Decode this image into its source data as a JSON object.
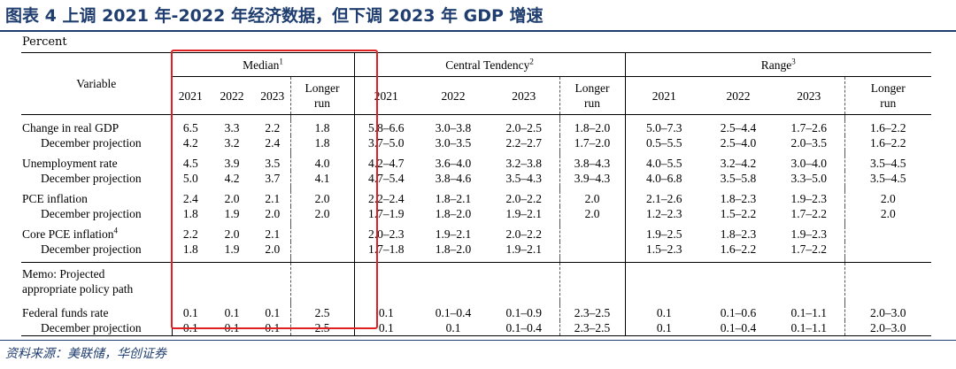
{
  "title": "图表 4   上调 2021 年-2022 年经济数据，但下调 2023 年 GDP 增速",
  "unit_label": "Percent",
  "header": {
    "variable": "Variable",
    "groups": [
      {
        "label": "Median",
        "sup": "1"
      },
      {
        "label": "Central Tendency",
        "sup": "2"
      },
      {
        "label": "Range",
        "sup": "3"
      }
    ],
    "years": [
      "2021",
      "2022",
      "2023"
    ],
    "longer_run_line1": "Longer",
    "longer_run_line2": "run"
  },
  "rows": [
    {
      "label": "Change in real GDP",
      "sup": "",
      "values": [
        "6.5",
        "3.3",
        "2.2",
        "1.8",
        "5.8–6.6",
        "3.0–3.8",
        "2.0–2.5",
        "1.8–2.0",
        "5.0–7.3",
        "2.5–4.4",
        "1.7–2.6",
        "1.6–2.2"
      ]
    },
    {
      "label": "December projection",
      "sup": "",
      "sub": true,
      "values": [
        "4.2",
        "3.2",
        "2.4",
        "1.8",
        "3.7–5.0",
        "3.0–3.5",
        "2.2–2.7",
        "1.7–2.0",
        "0.5–5.5",
        "2.5–4.0",
        "2.0–3.5",
        "1.6–2.2"
      ]
    },
    {
      "label": "Unemployment rate",
      "sup": "",
      "values": [
        "4.5",
        "3.9",
        "3.5",
        "4.0",
        "4.2–4.7",
        "3.6–4.0",
        "3.2–3.8",
        "3.8–4.3",
        "4.0–5.5",
        "3.2–4.2",
        "3.0–4.0",
        "3.5–4.5"
      ]
    },
    {
      "label": "December projection",
      "sup": "",
      "sub": true,
      "values": [
        "5.0",
        "4.2",
        "3.7",
        "4.1",
        "4.7–5.4",
        "3.8–4.6",
        "3.5–4.3",
        "3.9–4.3",
        "4.0–6.8",
        "3.5–5.8",
        "3.3–5.0",
        "3.5–4.5"
      ]
    },
    {
      "label": "PCE inflation",
      "sup": "",
      "values": [
        "2.4",
        "2.0",
        "2.1",
        "2.0",
        "2.2–2.4",
        "1.8–2.1",
        "2.0–2.2",
        "2.0",
        "2.1–2.6",
        "1.8–2.3",
        "1.9–2.3",
        "2.0"
      ]
    },
    {
      "label": "December projection",
      "sup": "",
      "sub": true,
      "values": [
        "1.8",
        "1.9",
        "2.0",
        "2.0",
        "1.7–1.9",
        "1.8–2.0",
        "1.9–2.1",
        "2.0",
        "1.2–2.3",
        "1.5–2.2",
        "1.7–2.2",
        "2.0"
      ]
    },
    {
      "label": "Core PCE inflation",
      "sup": "4",
      "values": [
        "2.2",
        "2.0",
        "2.1",
        "",
        "2.0–2.3",
        "1.9–2.1",
        "2.0–2.2",
        "",
        "1.9–2.5",
        "1.8–2.3",
        "1.9–2.3",
        ""
      ]
    },
    {
      "label": "December projection",
      "sup": "",
      "sub": true,
      "values": [
        "1.8",
        "1.9",
        "2.0",
        "",
        "1.7–1.8",
        "1.8–2.0",
        "1.9–2.1",
        "",
        "1.5–2.3",
        "1.6–2.2",
        "1.7–2.2",
        ""
      ]
    }
  ],
  "memo": {
    "line1": "Memo: Projected",
    "line2": "appropriate policy path"
  },
  "policy_rows": [
    {
      "label": "Federal funds rate",
      "values": [
        "0.1",
        "0.1",
        "0.1",
        "2.5",
        "0.1",
        "0.1–0.4",
        "0.1–0.9",
        "2.3–2.5",
        "0.1",
        "0.1–0.6",
        "0.1–1.1",
        "2.0–3.0"
      ]
    },
    {
      "label": "December projection",
      "sub": true,
      "values": [
        "0.1",
        "0.1",
        "0.1",
        "2.5",
        "0.1",
        "0.1",
        "0.1–0.4",
        "2.3–2.5",
        "0.1",
        "0.1–0.4",
        "0.1–1.1",
        "2.0–3.0"
      ]
    }
  ],
  "source": "资料来源：美联储，华创证券",
  "highlight_color": "#e02020",
  "title_color": "#1f3e6f"
}
